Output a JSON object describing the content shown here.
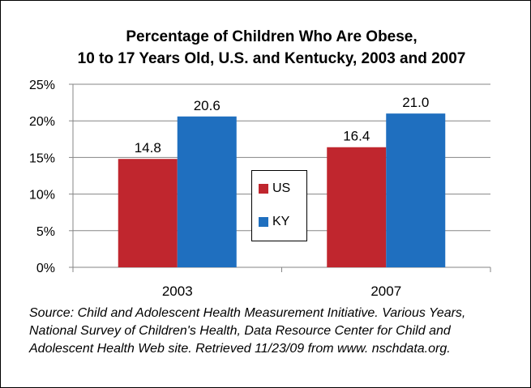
{
  "chart_data": {
    "type": "bar",
    "title_line1": "Percentage of Children Who Are Obese,",
    "title_line2": "10 to 17 Years Old, U.S. and Kentucky, 2003 and 2007",
    "categories": [
      "2003",
      "2007"
    ],
    "series": [
      {
        "name": "US",
        "color": "#c0262e",
        "values": [
          14.8,
          16.4
        ],
        "labels": [
          "14.8",
          "16.4"
        ]
      },
      {
        "name": "KY",
        "color": "#1f6fbf",
        "values": [
          20.6,
          21.0
        ],
        "labels": [
          "20.6",
          "21.0"
        ]
      }
    ],
    "ylim": [
      0,
      25
    ],
    "yticks": [
      0,
      5,
      10,
      15,
      20,
      25
    ],
    "ytick_labels": [
      "0%",
      "5%",
      "10%",
      "15%",
      "20%",
      "25%"
    ],
    "grid": true,
    "legend_position": "center"
  },
  "source": "Source: Child and Adolescent Health Measurement Initiative.  Various Years, National Survey of Children's Health, Data Resource Center for Child and Adolescent Health Web site.  Retrieved 11/23/09 from www. nschdata.org."
}
